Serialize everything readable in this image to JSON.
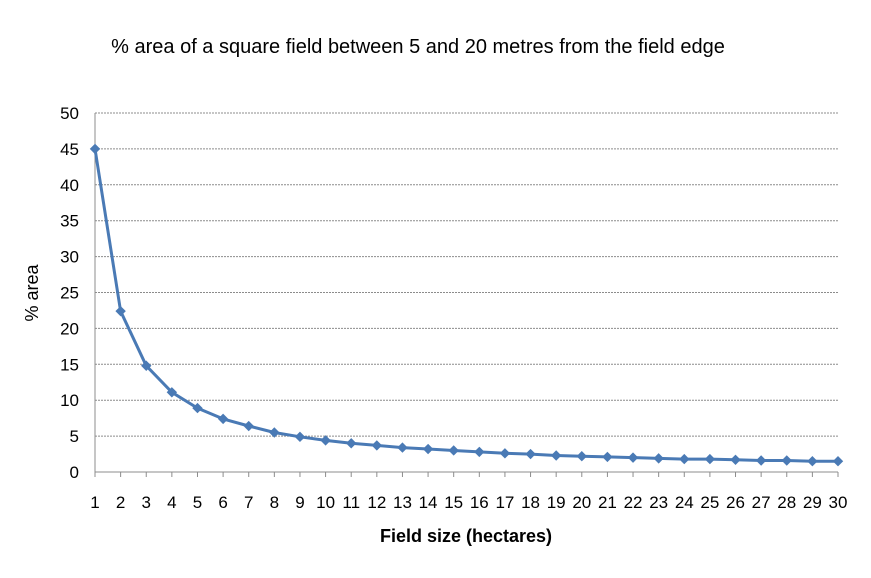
{
  "chart_data": {
    "type": "line",
    "title": "% area of a square field between 5 and 20 metres from the field edge",
    "xlabel": "Field size (hectares)",
    "ylabel": "% area",
    "categories": [
      "1",
      "2",
      "3",
      "4",
      "5",
      "6",
      "7",
      "8",
      "9",
      "10",
      "11",
      "12",
      "13",
      "14",
      "15",
      "16",
      "17",
      "18",
      "19",
      "20",
      "21",
      "22",
      "23",
      "24",
      "25",
      "26",
      "27",
      "28",
      "29",
      "30"
    ],
    "series": [
      {
        "values": [
          45.0,
          22.4,
          14.8,
          11.1,
          8.9,
          7.4,
          6.4,
          5.5,
          4.9,
          4.4,
          4.0,
          3.7,
          3.4,
          3.2,
          3.0,
          2.8,
          2.6,
          2.5,
          2.3,
          2.2,
          2.1,
          2.0,
          1.9,
          1.8,
          1.8,
          1.7,
          1.6,
          1.6,
          1.5,
          1.5
        ],
        "color": "#4a7ab5"
      }
    ],
    "ylim": [
      0,
      50
    ],
    "yticks": [
      0,
      5,
      10,
      15,
      20,
      25,
      30,
      35,
      40,
      45,
      50
    ],
    "grid": true,
    "gridline_color": "#8c8c8c",
    "marker": "diamond",
    "legend": "none"
  }
}
